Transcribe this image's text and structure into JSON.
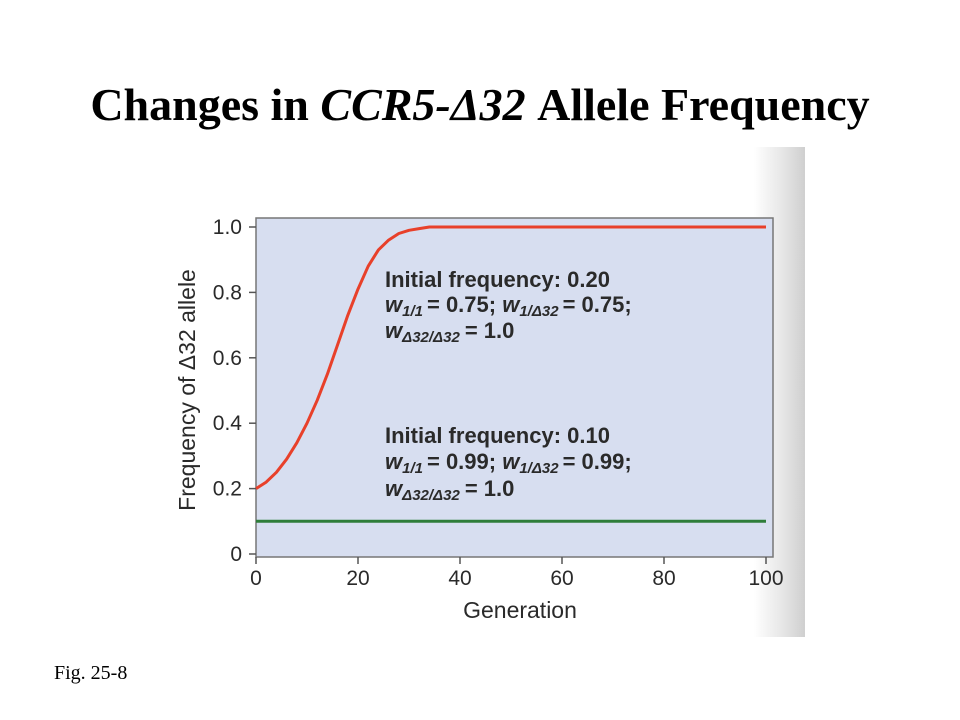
{
  "title": {
    "prefix": "Changes in ",
    "gene": "CCR5-Δ32",
    "suffix": " Allele Frequency"
  },
  "caption": "Fig. 25-8",
  "colors": {
    "plot_background": "#d7def0",
    "series_red": "#e8402a",
    "series_green": "#2e7d3a"
  },
  "chart_data": {
    "type": "line",
    "title": "",
    "xlabel": "Generation",
    "ylabel": "Frequency of Δ32 allele",
    "xlim": [
      0,
      100
    ],
    "ylim": [
      0,
      1.0
    ],
    "x_ticks": [
      "0",
      "20",
      "40",
      "60",
      "80",
      "100"
    ],
    "y_ticks": [
      "0",
      "0.2",
      "0.4",
      "0.6",
      "0.8",
      "1.0"
    ],
    "grid": false,
    "series": [
      {
        "color": "#e8402a",
        "x": [
          0,
          2,
          4,
          6,
          8,
          10,
          12,
          14,
          16,
          18,
          20,
          22,
          24,
          26,
          28,
          30,
          32,
          34,
          36,
          40,
          50,
          60,
          70,
          80,
          90,
          100
        ],
        "y": [
          0.2,
          0.22,
          0.25,
          0.29,
          0.34,
          0.4,
          0.47,
          0.55,
          0.64,
          0.73,
          0.81,
          0.88,
          0.93,
          0.96,
          0.98,
          0.99,
          0.995,
          1.0,
          1.0,
          1.0,
          1.0,
          1.0,
          1.0,
          1.0,
          1.0,
          1.0
        ]
      },
      {
        "color": "#2e7d3a",
        "x": [
          0,
          100
        ],
        "y": [
          0.1,
          0.1
        ]
      }
    ],
    "annotations": [
      {
        "line1": "Initial frequency: 0.20",
        "w11": "= 0.75; ",
        "w1d": "= 0.75;",
        "wdd": "= 1.0"
      },
      {
        "line1": "Initial frequency: 0.10",
        "w11": "= 0.99; ",
        "w1d": "= 0.99;",
        "wdd": "= 1.0"
      }
    ],
    "annotation_symbols": {
      "w": "w",
      "sub11": "1/1",
      "sub1d": "1/Δ32",
      "subdd": "Δ32/Δ32"
    }
  }
}
